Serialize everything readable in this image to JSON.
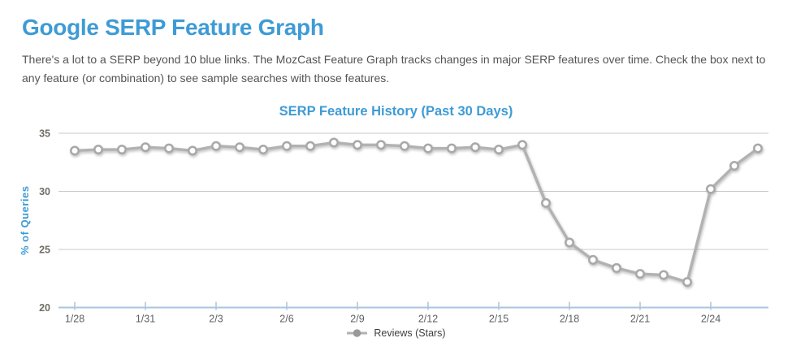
{
  "page": {
    "title": "Google SERP Feature Graph",
    "description": "There's a lot to a SERP beyond 10 blue links. The MozCast Feature Graph tracks changes in major SERP features over time. Check the box next to any feature (or combination) to see sample searches with those features."
  },
  "chart_data": {
    "type": "line",
    "title": "SERP Feature History (Past 30 Days)",
    "xlabel": "",
    "ylabel": "% of Queries",
    "ylim": [
      20,
      35
    ],
    "yticks": [
      20,
      25,
      30,
      35
    ],
    "grid": true,
    "legend_position": "bottom-center",
    "xtick_every": 3,
    "xtick_labels": [
      "1/28",
      "1/31",
      "2/3",
      "2/6",
      "2/9",
      "2/12",
      "2/15",
      "2/18",
      "2/21",
      "2/24"
    ],
    "x": [
      "1/28",
      "1/29",
      "1/30",
      "1/31",
      "2/1",
      "2/2",
      "2/3",
      "2/4",
      "2/5",
      "2/6",
      "2/7",
      "2/8",
      "2/9",
      "2/10",
      "2/11",
      "2/12",
      "2/13",
      "2/14",
      "2/15",
      "2/16",
      "2/17",
      "2/18",
      "2/19",
      "2/20",
      "2/21",
      "2/22",
      "2/23",
      "2/24",
      "2/25",
      "2/26"
    ],
    "series": [
      {
        "name": "Reviews (Stars)",
        "marker": "open-circle",
        "values": [
          33.5,
          33.6,
          33.6,
          33.8,
          33.7,
          33.5,
          33.9,
          33.8,
          33.6,
          33.9,
          33.9,
          34.2,
          34.0,
          34.0,
          33.9,
          33.7,
          33.7,
          33.8,
          33.6,
          34.0,
          29.0,
          25.6,
          24.1,
          23.4,
          22.9,
          22.8,
          22.2,
          30.2,
          32.2,
          33.7
        ]
      }
    ]
  },
  "colors": {
    "accent_blue": "#3e9bd5",
    "body_text": "#545454",
    "gridline": "#c9c9c9",
    "axis_line": "#a9c4dd",
    "series_line": "#b2b2b2",
    "marker_stroke": "#a8a8a8",
    "marker_fill": "#ffffff",
    "legend_marker": "#999999"
  }
}
